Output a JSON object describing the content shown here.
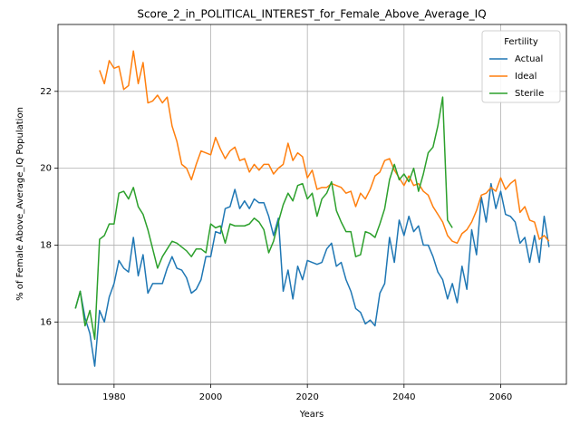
{
  "chart_data": {
    "type": "line",
    "title": "Score_2_in_POLITICAL_INTEREST_for_Female_Above_Average_IQ",
    "x_label": "Years",
    "y_label": "% of Female Above_Average_IQ Population",
    "x": [
      1972,
      1973,
      1974,
      1975,
      1976,
      1977,
      1978,
      1979,
      1980,
      1981,
      1982,
      1983,
      1984,
      1985,
      1986,
      1987,
      1988,
      1989,
      1990,
      1991,
      1992,
      1993,
      1994,
      1995,
      1996,
      1997,
      1998,
      1999,
      2000,
      2001,
      2002,
      2003,
      2004,
      2005,
      2006,
      2007,
      2008,
      2009,
      2010,
      2011,
      2012,
      2013,
      2014,
      2015,
      2016,
      2017,
      2018,
      2019,
      2020,
      2021,
      2022,
      2023,
      2024,
      2025,
      2026,
      2027,
      2028,
      2029,
      2030,
      2031,
      2032,
      2033,
      2034,
      2035,
      2036,
      2037,
      2038,
      2039,
      2040,
      2041,
      2042,
      2043,
      2044,
      2045,
      2046,
      2047,
      2048,
      2049,
      2050,
      2051,
      2052,
      2053,
      2054,
      2055,
      2056,
      2057,
      2058,
      2059,
      2060,
      2061,
      2062,
      2063,
      2064,
      2065,
      2066,
      2067,
      2068,
      2069,
      2070
    ],
    "series": [
      {
        "name": "Actual",
        "color": "#1f77b4",
        "values": [
          16.35,
          16.8,
          16.1,
          15.7,
          14.85,
          16.3,
          16.0,
          16.65,
          17.0,
          17.6,
          17.4,
          17.3,
          18.2,
          17.2,
          17.75,
          16.75,
          17.0,
          17.0,
          17.0,
          17.4,
          17.7,
          17.4,
          17.35,
          17.15,
          16.75,
          16.85,
          17.1,
          17.7,
          17.7,
          18.35,
          18.3,
          18.95,
          19.0,
          19.45,
          18.95,
          19.15,
          18.95,
          19.2,
          19.1,
          19.1,
          18.75,
          18.25,
          18.7,
          16.8,
          17.35,
          16.6,
          17.45,
          17.1,
          17.6,
          17.55,
          17.5,
          17.55,
          17.9,
          18.05,
          17.45,
          17.55,
          17.1,
          16.8,
          16.35,
          16.25,
          15.95,
          16.05,
          15.9,
          16.75,
          17.0,
          18.2,
          17.55,
          18.65,
          18.25,
          18.75,
          18.35,
          18.5,
          18.0,
          18.0,
          17.7,
          17.3,
          17.1,
          16.6,
          17.0,
          16.5,
          17.45,
          16.85,
          18.4,
          17.75,
          19.25,
          18.6,
          19.6,
          18.95,
          19.4,
          18.8,
          18.75,
          18.6,
          18.05,
          18.2,
          17.55,
          18.25,
          17.55,
          18.75,
          17.95
        ]
      },
      {
        "name": "Ideal",
        "color": "#ff7f0e",
        "values": [
          null,
          null,
          null,
          null,
          null,
          22.55,
          22.2,
          22.8,
          22.6,
          22.65,
          22.05,
          22.15,
          23.05,
          22.2,
          22.75,
          21.7,
          21.75,
          21.9,
          21.7,
          21.85,
          21.1,
          20.7,
          20.1,
          20.0,
          19.7,
          20.1,
          20.45,
          20.4,
          20.35,
          20.8,
          20.5,
          20.25,
          20.45,
          20.55,
          20.2,
          20.25,
          19.9,
          20.1,
          19.95,
          20.1,
          20.1,
          19.85,
          20.0,
          20.1,
          20.65,
          20.2,
          20.4,
          20.3,
          19.75,
          19.95,
          19.45,
          19.5,
          19.5,
          19.6,
          19.55,
          19.5,
          19.35,
          19.4,
          19.0,
          19.35,
          19.2,
          19.45,
          19.8,
          19.9,
          20.2,
          20.25,
          19.95,
          19.75,
          19.55,
          19.8,
          19.55,
          19.6,
          19.4,
          19.3,
          19.0,
          18.8,
          18.6,
          18.25,
          18.1,
          18.05,
          18.3,
          18.4,
          18.6,
          18.9,
          19.3,
          19.35,
          19.5,
          19.4,
          19.75,
          19.45,
          19.6,
          19.7,
          18.85,
          19.0,
          18.65,
          18.6,
          18.15,
          18.25,
          18.1
        ]
      },
      {
        "name": "Sterile",
        "color": "#2ca02c",
        "values": [
          16.35,
          16.8,
          15.9,
          16.3,
          15.55,
          18.15,
          18.25,
          18.55,
          18.55,
          19.35,
          19.4,
          19.2,
          19.5,
          19.0,
          18.8,
          18.4,
          17.9,
          17.4,
          17.7,
          17.9,
          18.1,
          18.05,
          17.95,
          17.85,
          17.7,
          17.9,
          17.9,
          17.8,
          18.55,
          18.45,
          18.5,
          18.05,
          18.55,
          18.5,
          18.5,
          18.5,
          18.55,
          18.7,
          18.6,
          18.4,
          17.8,
          18.1,
          18.6,
          19.05,
          19.35,
          19.15,
          19.55,
          19.6,
          19.2,
          19.35,
          18.75,
          19.2,
          19.35,
          19.65,
          18.9,
          18.6,
          18.35,
          18.35,
          17.7,
          17.75,
          18.35,
          18.3,
          18.2,
          18.55,
          18.95,
          19.7,
          20.1,
          19.7,
          19.85,
          19.65,
          20.0,
          19.4,
          19.85,
          20.4,
          20.55,
          21.1,
          21.85,
          18.65,
          18.45,
          null,
          null,
          null,
          null,
          null,
          null,
          null,
          null,
          null,
          null,
          null,
          null,
          null,
          null,
          null,
          null,
          null,
          null,
          null,
          null
        ]
      }
    ],
    "xlim": [
      1968.4,
      2073.6
    ],
    "xticks": [
      1980,
      2000,
      2020,
      2040,
      2060
    ],
    "ylim": [
      14.38,
      23.74
    ],
    "yticks": [
      16,
      18,
      20,
      22
    ],
    "grid": true,
    "legend": {
      "title": "Fertility",
      "position": "upper right"
    }
  }
}
